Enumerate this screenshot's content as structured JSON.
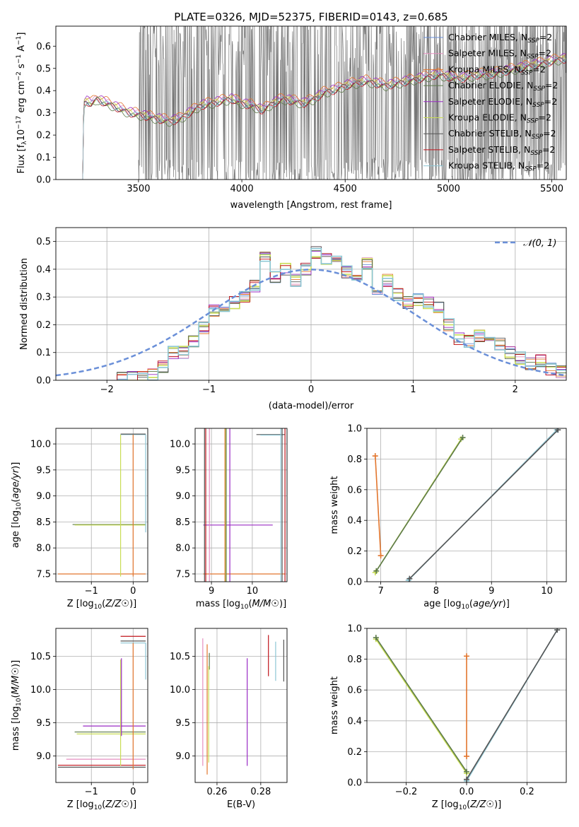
{
  "colors": {
    "Chabrier MILES": "#6a8fd8",
    "Salpeter MILES": "#e68fc0",
    "Kroupa MILES": "#e2762e",
    "Chabrier ELODIE": "#5d7a4a",
    "Salpeter ELODIE": "#9a2bc4",
    "Kroupa ELODIE": "#c9dd55",
    "Chabrier STELIB": "#555555",
    "Salpeter STELIB": "#c0141c",
    "Kroupa STELIB": "#8cc6d4",
    "gauss": "#6a8fd8",
    "grid": "#b0b0b0"
  },
  "legend_labels": [
    "Chabrier MILES, N",
    "Salpeter MILES, N",
    "Kroupa MILES, N",
    "Chabrier ELODIE, N",
    "Salpeter ELODIE, N",
    "Kroupa ELODIE, N",
    "Chabrier STELIB, N",
    "Salpeter STELIB, N",
    "Kroupa STELIB, N"
  ],
  "legend_sub": "SSP",
  "legend_suffix": "=2",
  "chart_data": [
    {
      "id": "spectrum",
      "type": "line",
      "title": "PLATE=0326, MJD=52375, FIBERID=0143, z=0.685",
      "xlabel": "wavelength [Angstrom, rest frame]",
      "ylabel_parts": [
        "Flux [f",
        "λ",
        "10",
        "−17",
        " erg cm",
        "−2",
        " s",
        "−1",
        " A",
        "−1",
        "]"
      ],
      "xlim": [
        3100,
        5570
      ],
      "ylim": [
        0,
        0.69
      ],
      "xticks": [
        3500,
        4000,
        4500,
        5000,
        5500
      ],
      "xticklabels": [
        "3500",
        "4000",
        "4500",
        "5000",
        "5500"
      ],
      "yticks": [
        0.0,
        0.1,
        0.2,
        0.3,
        0.4,
        0.5,
        0.6
      ],
      "yticklabels": [
        "0.0",
        "0.1",
        "0.2",
        "0.3",
        "0.4",
        "0.5",
        "0.6"
      ],
      "data_noise_range": [
        3500,
        5570
      ],
      "model_start": 3230,
      "model_points": [
        [
          3230,
          0.0
        ],
        [
          3235,
          0.34
        ],
        [
          3250,
          0.35
        ],
        [
          3270,
          0.34
        ],
        [
          3300,
          0.36
        ],
        [
          3320,
          0.35
        ],
        [
          3350,
          0.34
        ],
        [
          3400,
          0.32
        ],
        [
          3450,
          0.3
        ],
        [
          3500,
          0.29
        ],
        [
          3550,
          0.28
        ],
        [
          3600,
          0.27
        ],
        [
          3650,
          0.26
        ],
        [
          3700,
          0.27
        ],
        [
          3750,
          0.3
        ],
        [
          3800,
          0.33
        ],
        [
          3850,
          0.34
        ],
        [
          3900,
          0.35
        ],
        [
          3950,
          0.36
        ],
        [
          4000,
          0.34
        ],
        [
          4050,
          0.33
        ],
        [
          4100,
          0.31
        ],
        [
          4150,
          0.34
        ],
        [
          4200,
          0.36
        ],
        [
          4250,
          0.35
        ],
        [
          4300,
          0.34
        ],
        [
          4350,
          0.36
        ],
        [
          4400,
          0.39
        ],
        [
          4450,
          0.4
        ],
        [
          4500,
          0.42
        ],
        [
          4550,
          0.43
        ],
        [
          4600,
          0.44
        ],
        [
          4650,
          0.43
        ],
        [
          4700,
          0.42
        ],
        [
          4750,
          0.43
        ],
        [
          4800,
          0.44
        ],
        [
          4850,
          0.45
        ],
        [
          4900,
          0.46
        ],
        [
          4950,
          0.47
        ],
        [
          5000,
          0.46
        ],
        [
          5050,
          0.45
        ],
        [
          5100,
          0.46
        ],
        [
          5150,
          0.47
        ],
        [
          5200,
          0.47
        ],
        [
          5250,
          0.48
        ],
        [
          5300,
          0.49
        ],
        [
          5350,
          0.5
        ],
        [
          5400,
          0.51
        ],
        [
          5450,
          0.52
        ],
        [
          5500,
          0.53
        ],
        [
          5550,
          0.54
        ]
      ]
    },
    {
      "id": "residuals",
      "type": "step",
      "xlabel": "(data-model)/error",
      "ylabel": "Normed distribution",
      "xlim": [
        -2.5,
        2.5
      ],
      "ylim": [
        0,
        0.55
      ],
      "xticks": [
        -2,
        -1,
        0,
        1,
        2
      ],
      "xticklabels": [
        "−2",
        "−1",
        "0",
        "1",
        "2"
      ],
      "yticks": [
        0.0,
        0.1,
        0.2,
        0.3,
        0.4,
        0.5
      ],
      "yticklabels": [
        "0.0",
        "0.1",
        "0.2",
        "0.3",
        "0.4",
        "0.5"
      ],
      "legend": "𝒩(0, 1)",
      "bin_edges": [
        -1.9,
        -1.8,
        -1.7,
        -1.6,
        -1.5,
        -1.4,
        -1.3,
        -1.2,
        -1.1,
        -1.0,
        -0.9,
        -0.8,
        -0.7,
        -0.6,
        -0.5,
        -0.4,
        -0.3,
        -0.2,
        -0.1,
        0.0,
        0.1,
        0.2,
        0.3,
        0.4,
        0.5,
        0.6,
        0.7,
        0.8,
        0.9,
        1.0,
        1.1,
        1.2,
        1.3,
        1.4,
        1.5,
        1.6,
        1.7,
        1.8,
        1.9,
        2.0,
        2.1,
        2.2,
        2.3,
        2.4,
        2.5
      ],
      "hist_base": [
        0.01,
        0.01,
        0.01,
        0.02,
        0.05,
        0.1,
        0.1,
        0.14,
        0.19,
        0.25,
        0.27,
        0.28,
        0.3,
        0.34,
        0.44,
        0.37,
        0.4,
        0.36,
        0.4,
        0.46,
        0.44,
        0.45,
        0.39,
        0.37,
        0.42,
        0.3,
        0.36,
        0.31,
        0.28,
        0.29,
        0.28,
        0.26,
        0.2,
        0.15,
        0.14,
        0.16,
        0.14,
        0.13,
        0.1,
        0.08,
        0.06,
        0.07,
        0.04,
        0.03
      ],
      "gauss_sigma": 1.0
    },
    {
      "id": "z-age",
      "type": "step",
      "xlabel": "Z [log10(Z/Z☉)]",
      "ylabel": "age  [log10(age/yr)]",
      "xlim": [
        -1.85,
        0.35
      ],
      "ylim": [
        7.35,
        10.3
      ],
      "xticks": [
        -1,
        0
      ],
      "xticklabels": [
        "−1",
        "0"
      ],
      "yticks": [
        7.5,
        8.0,
        8.5,
        9.0,
        9.5,
        10.0
      ],
      "yticklabels": [
        "7.5",
        "8.0",
        "8.5",
        "9.0",
        "9.5",
        "10.0"
      ],
      "h_segments": [
        {
          "series": "Kroupa MILES",
          "x": [
            -1.8,
            0.3
          ],
          "y": 7.5
        },
        {
          "series": "Chabrier ELODIE",
          "x": [
            -1.45,
            0.3
          ],
          "y": 8.45
        },
        {
          "series": "Kroupa ELODIE",
          "x": [
            -1.4,
            0.3
          ],
          "y": 8.44
        },
        {
          "series": "Kroupa STELIB",
          "x": [
            -0.3,
            0.3
          ],
          "y": 10.18
        },
        {
          "series": "Chabrier STELIB",
          "x": [
            -0.3,
            0.3
          ],
          "y": 10.19
        }
      ],
      "v_segments": [
        {
          "series": "Kroupa MILES",
          "x": 0.0,
          "y": [
            7.45,
            10.18
          ]
        },
        {
          "series": "Kroupa ELODIE",
          "x": -0.3,
          "y": [
            7.45,
            10.18
          ]
        },
        {
          "series": "Kroupa STELIB",
          "x": 0.3,
          "y": [
            8.3,
            10.18
          ]
        }
      ]
    },
    {
      "id": "mass-age",
      "type": "step",
      "xlabel": "mass [log10(M/M☉)]",
      "xlim": [
        8.6,
        10.85
      ],
      "ylim": [
        7.35,
        10.3
      ],
      "xticks": [
        9,
        10
      ],
      "xticklabels": [
        "9",
        "10"
      ],
      "yticks": [
        7.5,
        8.0,
        8.5,
        9.0,
        9.5,
        10.0
      ],
      "yticklabels": [
        "7.5",
        "8.0",
        "8.5",
        "9.0",
        "9.5",
        "10.0"
      ],
      "v_lines": [
        {
          "series": "Chabrier STELIB",
          "x": 8.83
        },
        {
          "series": "Salpeter STELIB",
          "x": 8.86
        },
        {
          "series": "Salpeter MILES",
          "x": 8.95
        },
        {
          "series": "Kroupa MILES",
          "x": 9.33
        },
        {
          "series": "Kroupa ELODIE",
          "x": 9.35
        },
        {
          "series": "Chabrier ELODIE",
          "x": 9.36
        },
        {
          "series": "Salpeter ELODIE",
          "x": 9.45
        },
        {
          "series": "Chabrier STELIB",
          "x": 10.73
        },
        {
          "series": "Salpeter STELIB",
          "x": 10.8
        },
        {
          "series": "Kroupa STELIB",
          "x": 10.7
        }
      ],
      "h_segments": [
        {
          "series": "Salpeter ELODIE",
          "x": [
            8.8,
            10.5
          ],
          "y": 8.44
        },
        {
          "series": "Kroupa MILES",
          "x": [
            8.8,
            10.8
          ],
          "y": 7.5
        },
        {
          "series": "Chabrier STELIB",
          "x": [
            10.1,
            10.8
          ],
          "y": 10.18
        },
        {
          "series": "Kroupa STELIB",
          "x": [
            10.2,
            10.75
          ],
          "y": 10.17
        }
      ]
    },
    {
      "id": "age-weight",
      "type": "line",
      "xlabel": "age  [log10(age/yr)]",
      "ylabel": "mass weight",
      "xlim": [
        6.75,
        10.35
      ],
      "ylim": [
        0,
        1.0
      ],
      "xticks": [
        7,
        8,
        9,
        10
      ],
      "xticklabels": [
        "7",
        "8",
        "9",
        "10"
      ],
      "yticks": [
        0.0,
        0.2,
        0.4,
        0.6,
        0.8,
        1.0
      ],
      "yticklabels": [
        "0.0",
        "0.2",
        "0.4",
        "0.6",
        "0.8",
        "1.0"
      ],
      "series": [
        {
          "name": "Kroupa MILES",
          "x": [
            6.9,
            7.0
          ],
          "y": [
            0.82,
            0.17
          ]
        },
        {
          "name": "Kroupa ELODIE",
          "x": [
            6.9,
            8.45
          ],
          "y": [
            0.06,
            0.93
          ]
        },
        {
          "name": "Chabrier ELODIE",
          "x": [
            6.92,
            8.48
          ],
          "y": [
            0.07,
            0.94
          ]
        },
        {
          "name": "Kroupa STELIB",
          "x": [
            7.5,
            10.18
          ],
          "y": [
            0.01,
            0.99
          ]
        },
        {
          "name": "Chabrier STELIB",
          "x": [
            7.52,
            10.2
          ],
          "y": [
            0.02,
            0.99
          ]
        }
      ]
    },
    {
      "id": "z-mass",
      "type": "step",
      "xlabel": "Z [log10(Z/Z☉)]",
      "ylabel": "mass [log10(M/M☉)]",
      "xlim": [
        -1.85,
        0.35
      ],
      "ylim": [
        8.6,
        10.92
      ],
      "xticks": [
        -1,
        0
      ],
      "xticklabels": [
        "−1",
        "0"
      ],
      "yticks": [
        9.0,
        9.5,
        10.0,
        10.5
      ],
      "yticklabels": [
        "9.0",
        "9.5",
        "10.0",
        "10.5"
      ],
      "h_segments": [
        {
          "series": "Chabrier STELIB",
          "x": [
            -1.8,
            0.3
          ],
          "y": 8.83
        },
        {
          "series": "Salpeter STELIB",
          "x": [
            -1.8,
            0.3
          ],
          "y": 8.86
        },
        {
          "series": "Salpeter MILES",
          "x": [
            -1.6,
            0.3
          ],
          "y": 8.95
        },
        {
          "series": "Kroupa ELODIE",
          "x": [
            -1.35,
            0.3
          ],
          "y": 9.33
        },
        {
          "series": "Chabrier ELODIE",
          "x": [
            -1.4,
            0.3
          ],
          "y": 9.36
        },
        {
          "series": "Salpeter ELODIE",
          "x": [
            -1.2,
            0.3
          ],
          "y": 9.45
        },
        {
          "series": "Salpeter STELIB",
          "x": [
            -0.3,
            0.3
          ],
          "y": 10.8
        },
        {
          "series": "Kroupa STELIB",
          "x": [
            -0.3,
            0.3
          ],
          "y": 10.7
        },
        {
          "series": "Chabrier STELIB",
          "x": [
            -0.3,
            0.3
          ],
          "y": 10.73
        }
      ],
      "v_segments": [
        {
          "series": "Kroupa MILES",
          "x": 0.0,
          "y": [
            8.8,
            10.7
          ]
        },
        {
          "series": "Kroupa ELODIE",
          "x": -0.3,
          "y": [
            8.85,
            10.45
          ]
        },
        {
          "series": "Salpeter ELODIE",
          "x": -0.28,
          "y": [
            9.3,
            10.47
          ]
        },
        {
          "series": "Kroupa STELIB",
          "x": 0.3,
          "y": [
            10.15,
            10.7
          ]
        }
      ]
    },
    {
      "id": "ebv-mass",
      "type": "vlines",
      "xlabel": "E(B-V)",
      "xlim": [
        0.25,
        0.292
      ],
      "ylim": [
        8.6,
        10.92
      ],
      "xticks": [
        0.26,
        0.28
      ],
      "xticklabels": [
        "0.26",
        "0.28"
      ],
      "yticks": [
        9.0,
        9.5,
        10.0,
        10.5
      ],
      "yticklabels": [
        "9.0",
        "9.5",
        "10.0",
        "10.5"
      ],
      "lines": [
        {
          "series": "Salpeter MILES",
          "x": 0.2535,
          "y": [
            8.85,
            10.77
          ]
        },
        {
          "series": "Kroupa MILES",
          "x": 0.2555,
          "y": [
            8.72,
            10.68
          ]
        },
        {
          "series": "Chabrier ELODIE",
          "x": 0.2565,
          "y": [
            10.3,
            10.55
          ]
        },
        {
          "series": "Kroupa ELODIE",
          "x": 0.2562,
          "y": [
            8.9,
            10.35
          ]
        },
        {
          "series": "Salpeter ELODIE",
          "x": 0.2738,
          "y": [
            8.85,
            10.47
          ]
        },
        {
          "series": "Salpeter STELIB",
          "x": 0.2835,
          "y": [
            10.2,
            10.82
          ]
        },
        {
          "series": "Kroupa STELIB",
          "x": 0.2868,
          "y": [
            10.13,
            10.72
          ]
        },
        {
          "series": "Chabrier STELIB",
          "x": 0.2905,
          "y": [
            10.12,
            10.75
          ]
        }
      ]
    },
    {
      "id": "z-weight",
      "type": "line",
      "xlabel": "Z [log10(Z/Z☉)]",
      "ylabel": "mass weight",
      "xlim": [
        -0.33,
        0.33
      ],
      "ylim": [
        0,
        1.0
      ],
      "xticks": [
        -0.2,
        0.0,
        0.2
      ],
      "xticklabels": [
        "−0.2",
        "0.0",
        "0.2"
      ],
      "yticks": [
        0.0,
        0.2,
        0.4,
        0.6,
        0.8,
        1.0
      ],
      "yticklabels": [
        "0.0",
        "0.2",
        "0.4",
        "0.6",
        "0.8",
        "1.0"
      ],
      "series": [
        {
          "name": "Kroupa MILES",
          "x": [
            0.0,
            0.0
          ],
          "y": [
            0.82,
            0.17
          ]
        },
        {
          "name": "Kroupa ELODIE",
          "x": [
            -0.3,
            0.0
          ],
          "y": [
            0.93,
            0.06
          ]
        },
        {
          "name": "Chabrier ELODIE",
          "x": [
            -0.3,
            0.0
          ],
          "y": [
            0.94,
            0.07
          ]
        },
        {
          "name": "Kroupa STELIB",
          "x": [
            0.0,
            0.3
          ],
          "y": [
            0.01,
            0.99
          ]
        },
        {
          "name": "Chabrier STELIB",
          "x": [
            0.0,
            0.3
          ],
          "y": [
            0.02,
            0.99
          ]
        }
      ]
    }
  ]
}
